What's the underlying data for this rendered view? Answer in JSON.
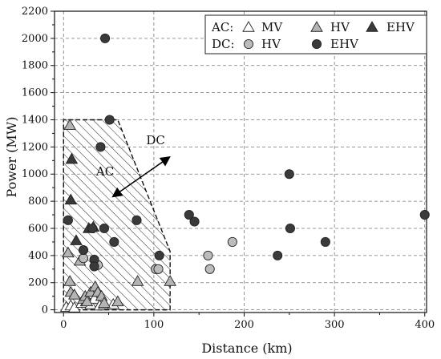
{
  "chart_data": {
    "type": "scatter",
    "xlabel": "Distance (km)",
    "ylabel": "Power (MW)",
    "xlim": [
      -10,
      402
    ],
    "ylim": [
      -20,
      2200
    ],
    "xticks": [
      0,
      100,
      200,
      300,
      400
    ],
    "yticks": [
      0,
      200,
      400,
      600,
      800,
      1000,
      1200,
      1400,
      1600,
      1800,
      2000,
      2200
    ],
    "grid": true,
    "legend_position": "top-right",
    "legend_groups": [
      {
        "label": "AC:",
        "series": [
          "AC MV",
          "AC HV",
          "AC EHV"
        ]
      },
      {
        "label": "DC:",
        "series": [
          "DC HV",
          "DC EHV"
        ]
      }
    ],
    "series": [
      {
        "name": "MV",
        "legend_label": "MV",
        "group": "AC",
        "marker": "triangle",
        "fill": "#ffffff",
        "points": [
          [
            3,
            20
          ],
          [
            8,
            30
          ],
          [
            12,
            15
          ],
          [
            20,
            50
          ],
          [
            25,
            60
          ],
          [
            30,
            40
          ],
          [
            34,
            80
          ],
          [
            40,
            30
          ],
          [
            45,
            40
          ],
          [
            55,
            40
          ]
        ]
      },
      {
        "name": "HV",
        "legend_label": "HV",
        "group": "AC",
        "marker": "triangle",
        "fill": "#b4b4b4",
        "points": [
          [
            7,
            1360
          ],
          [
            5,
            420
          ],
          [
            7,
            210
          ],
          [
            8,
            130
          ],
          [
            12,
            110
          ],
          [
            18,
            360
          ],
          [
            22,
            80
          ],
          [
            24,
            100
          ],
          [
            26,
            60
          ],
          [
            30,
            130
          ],
          [
            35,
            170
          ],
          [
            38,
            130
          ],
          [
            42,
            100
          ],
          [
            45,
            50
          ],
          [
            60,
            60
          ],
          [
            82,
            210
          ],
          [
            118,
            210
          ]
        ]
      },
      {
        "name": "EHV",
        "legend_label": "EHV",
        "group": "AC",
        "marker": "triangle",
        "fill": "#3a3a3a",
        "points": [
          [
            9,
            1110
          ],
          [
            8,
            810
          ],
          [
            14,
            510
          ],
          [
            28,
            600
          ],
          [
            33,
            610
          ]
        ]
      },
      {
        "name": "HV",
        "legend_label": "HV",
        "group": "DC",
        "marker": "circle",
        "fill": "#bcbcbc",
        "points": [
          [
            22,
            380
          ],
          [
            38,
            330
          ],
          [
            102,
            300
          ],
          [
            105,
            300
          ],
          [
            160,
            400
          ],
          [
            162,
            300
          ],
          [
            187,
            500
          ]
        ]
      },
      {
        "name": "EHV",
        "legend_label": "EHV",
        "group": "DC",
        "marker": "circle",
        "fill": "#3a3a3a",
        "points": [
          [
            46,
            2000
          ],
          [
            51,
            1400
          ],
          [
            41,
            1200
          ],
          [
            5,
            660
          ],
          [
            32,
            600
          ],
          [
            45,
            600
          ],
          [
            56,
            500
          ],
          [
            22,
            440
          ],
          [
            34,
            370
          ],
          [
            34,
            320
          ],
          [
            81,
            660
          ],
          [
            106,
            400
          ],
          [
            139,
            700
          ],
          [
            145,
            650
          ],
          [
            237,
            400
          ],
          [
            250,
            1000
          ],
          [
            251,
            600
          ],
          [
            290,
            500
          ],
          [
            400,
            700
          ]
        ]
      }
    ],
    "annotations": [
      {
        "text": "AC",
        "x": 46,
        "y": 990
      },
      {
        "text": "DC",
        "x": 102,
        "y": 1220
      }
    ],
    "regions": [
      {
        "label": "AC",
        "pattern": "hatched",
        "polygon": [
          [
            0,
            0
          ],
          [
            0,
            1400
          ],
          [
            60,
            1400
          ],
          [
            118,
            430
          ],
          [
            118,
            0
          ]
        ]
      }
    ],
    "arrows": [
      {
        "from": [
          58,
          850
        ],
        "to": [
          114,
          1110
        ]
      }
    ]
  }
}
